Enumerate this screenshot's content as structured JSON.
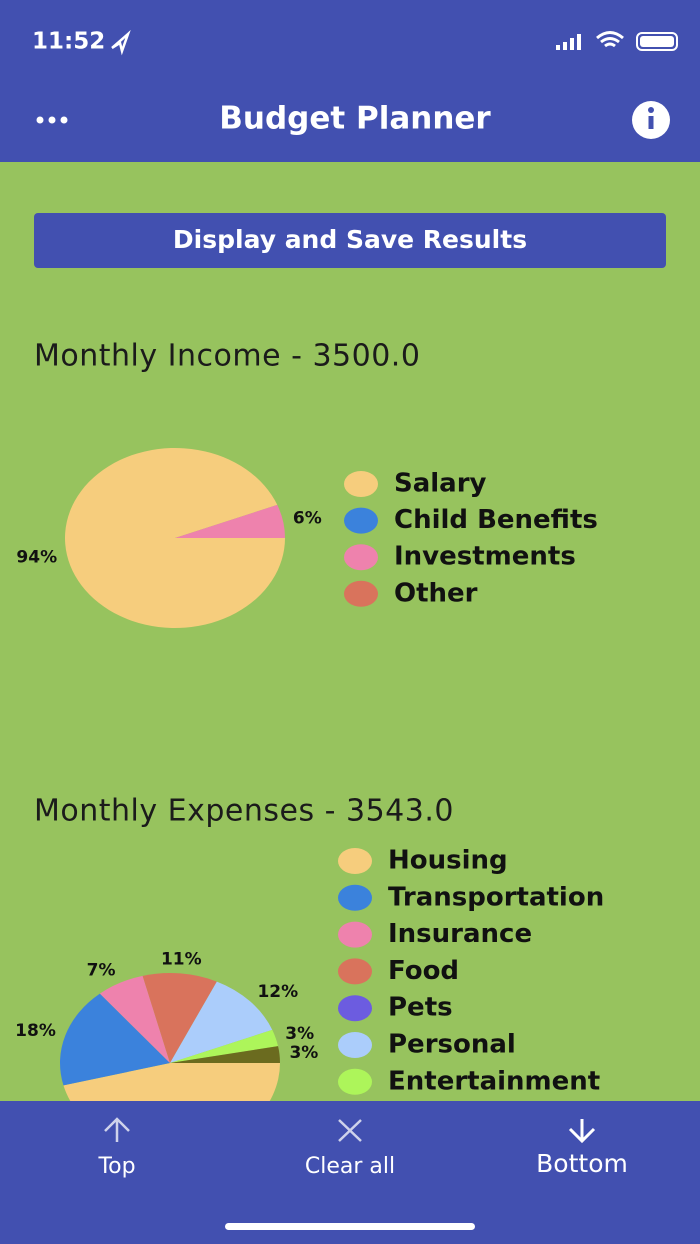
{
  "status_bar": {
    "time": "11:52"
  },
  "header": {
    "title": "Budget Planner"
  },
  "button": {
    "label": "Display and Save Results"
  },
  "chart_data": [
    {
      "type": "pie",
      "title": "Monthly Income - 3500.0",
      "categories": [
        "Salary",
        "Child Benefits",
        "Investments",
        "Other"
      ],
      "values": [
        94,
        0,
        6,
        0
      ],
      "value_labels": [
        "94%",
        null,
        "6%",
        null
      ],
      "colors": [
        "#f6cd7d",
        "#3b82dc",
        "#ee82ad",
        "#d9735c"
      ]
    },
    {
      "type": "pie",
      "title": "Monthly Expenses - 3543.0",
      "categories": [
        "Housing",
        "Transportation",
        "Insurance",
        "Food",
        "Pets",
        "Personal",
        "Entertainment",
        null
      ],
      "values": [
        46,
        18,
        7,
        11,
        0,
        12,
        3,
        3
      ],
      "value_labels": [
        null,
        "18%",
        "7%",
        "11%",
        null,
        "12%",
        "3%",
        "3%"
      ],
      "colors": [
        "#f6cd7d",
        "#3b82dc",
        "#ee82ad",
        "#d9735c",
        "#6c5ce0",
        "#abcdfb",
        "#adf55a",
        "#6b6b1f"
      ]
    }
  ],
  "toolbar": {
    "items": [
      "Top",
      "Clear all",
      "Bottom"
    ]
  }
}
